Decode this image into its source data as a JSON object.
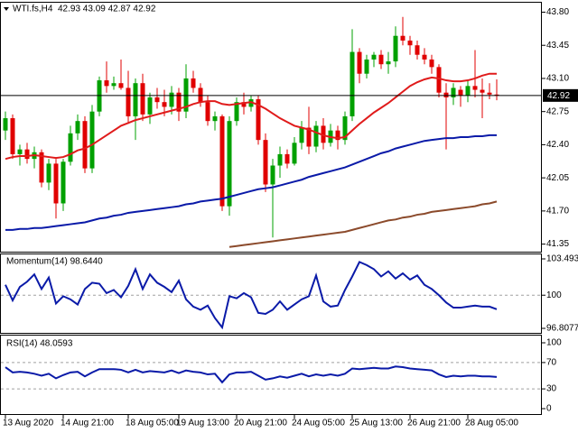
{
  "chart_data": [
    {
      "type": "candlestick",
      "title": "WTI.fs,H4  42.93 43.09 42.87 42.92",
      "up_color": "#00a000",
      "down_color": "#e00000",
      "open": [
        42.55,
        42.68,
        42.3,
        42.35,
        42.25,
        42.32,
        42.0,
        42.2,
        41.78,
        42.22,
        42.52,
        42.65,
        42.15,
        42.75,
        43.08,
        43.02,
        43.05,
        43.0,
        42.7,
        43.05,
        42.72,
        42.9,
        42.85,
        42.8,
        42.95,
        42.75,
        43.1,
        43.0,
        42.85,
        42.65,
        42.7,
        41.75,
        42.65,
        42.85,
        42.8,
        42.88,
        42.45,
        41.98,
        42.18,
        42.3,
        42.2,
        42.42,
        42.58,
        42.38,
        42.6,
        42.42,
        42.55,
        42.45,
        42.7,
        43.38,
        43.15,
        43.3,
        43.35,
        43.25,
        43.28,
        43.55,
        43.5,
        43.45,
        43.35,
        43.3,
        43.22,
        42.95,
        42.9,
        42.98,
        42.92,
        43.02,
        42.98,
        42.95,
        42.93
      ],
      "high": [
        42.75,
        42.72,
        42.4,
        42.42,
        42.38,
        42.35,
        42.25,
        42.25,
        42.25,
        42.6,
        42.72,
        42.7,
        42.82,
        43.12,
        43.28,
        43.12,
        43.3,
        43.18,
        43.1,
        43.15,
        42.95,
        43.0,
        42.98,
        43.02,
        43.0,
        43.25,
        43.18,
        43.05,
        42.92,
        42.75,
        42.72,
        42.7,
        42.9,
        42.95,
        42.92,
        42.92,
        42.52,
        42.25,
        42.38,
        42.35,
        42.48,
        42.65,
        42.8,
        42.65,
        42.68,
        42.62,
        42.6,
        42.75,
        43.62,
        43.42,
        43.35,
        43.38,
        43.4,
        43.38,
        43.65,
        43.75,
        43.55,
        43.5,
        43.42,
        43.35,
        43.25,
        43.05,
        43.05,
        43.02,
        43.08,
        43.4,
        43.1,
        43.05,
        43.09
      ],
      "low": [
        42.45,
        42.25,
        42.18,
        42.2,
        42.15,
        41.95,
        41.92,
        41.62,
        41.7,
        42.18,
        42.45,
        42.1,
        42.1,
        42.7,
        42.95,
        42.98,
        42.98,
        42.62,
        42.45,
        42.65,
        42.62,
        42.78,
        42.7,
        42.72,
        42.65,
        42.68,
        42.95,
        42.8,
        42.6,
        42.55,
        41.7,
        41.65,
        42.6,
        42.72,
        42.75,
        42.4,
        41.9,
        41.42,
        42.05,
        42.15,
        42.18,
        42.35,
        42.3,
        42.32,
        42.35,
        42.38,
        42.35,
        42.4,
        42.65,
        43.05,
        43.1,
        43.22,
        43.2,
        43.15,
        43.22,
        43.45,
        43.35,
        43.3,
        43.25,
        43.15,
        42.9,
        42.35,
        42.82,
        42.8,
        42.85,
        42.9,
        42.68,
        42.88,
        42.87
      ],
      "close": [
        42.68,
        42.3,
        42.35,
        42.25,
        42.32,
        42.0,
        42.2,
        41.78,
        42.22,
        42.52,
        42.65,
        42.15,
        42.75,
        43.08,
        43.02,
        43.05,
        43.0,
        42.7,
        43.05,
        42.72,
        42.9,
        42.85,
        42.8,
        42.95,
        42.75,
        43.1,
        43.0,
        42.85,
        42.65,
        42.7,
        41.75,
        42.65,
        42.85,
        42.8,
        42.88,
        42.45,
        41.98,
        42.18,
        42.3,
        42.2,
        42.42,
        42.58,
        42.38,
        42.6,
        42.42,
        42.55,
        42.45,
        42.7,
        43.38,
        43.15,
        43.3,
        43.35,
        43.25,
        43.28,
        43.55,
        43.5,
        43.45,
        43.35,
        43.3,
        43.22,
        42.95,
        42.9,
        43.0,
        42.92,
        43.02,
        42.98,
        42.95,
        42.93,
        42.92
      ],
      "series": [
        {
          "color": "#e01b1b",
          "values": [
            42.25,
            42.27,
            42.28,
            42.28,
            42.29,
            42.28,
            42.27,
            42.26,
            42.27,
            42.3,
            42.34,
            42.36,
            42.4,
            42.45,
            42.5,
            42.55,
            42.6,
            42.63,
            42.66,
            42.68,
            42.7,
            42.72,
            42.74,
            42.76,
            42.78,
            42.8,
            42.83,
            42.85,
            42.86,
            42.86,
            42.83,
            42.82,
            42.83,
            42.84,
            42.85,
            42.82,
            42.78,
            42.73,
            42.68,
            42.64,
            42.6,
            42.58,
            42.56,
            42.53,
            42.5,
            42.48,
            42.47,
            42.48,
            42.55,
            42.62,
            42.68,
            42.74,
            42.79,
            42.84,
            42.9,
            42.96,
            43.02,
            43.06,
            43.09,
            43.11,
            43.1,
            43.08,
            43.07,
            43.07,
            43.08,
            43.1,
            43.13,
            43.15,
            43.15
          ]
        },
        {
          "color": "#0a1aa8",
          "values": [
            41.5,
            41.5,
            41.51,
            41.51,
            41.52,
            41.52,
            41.53,
            41.54,
            41.55,
            41.56,
            41.57,
            41.58,
            41.6,
            41.62,
            41.63,
            41.65,
            41.66,
            41.68,
            41.69,
            41.7,
            41.71,
            41.72,
            41.73,
            41.74,
            41.75,
            41.77,
            41.78,
            41.8,
            41.81,
            41.82,
            41.83,
            41.85,
            41.87,
            41.89,
            41.91,
            41.93,
            41.94,
            41.95,
            41.97,
            41.99,
            42.01,
            42.03,
            42.06,
            42.08,
            42.1,
            42.12,
            42.14,
            42.16,
            42.19,
            42.22,
            42.25,
            42.28,
            42.31,
            42.33,
            42.36,
            42.38,
            42.4,
            42.42,
            42.44,
            42.45,
            42.46,
            42.47,
            42.47,
            42.48,
            42.48,
            42.49,
            42.49,
            42.5,
            42.5
          ]
        },
        {
          "color": "#8b4a2b",
          "values": [
            null,
            null,
            null,
            null,
            null,
            null,
            null,
            null,
            null,
            null,
            null,
            null,
            null,
            null,
            null,
            null,
            null,
            null,
            null,
            null,
            null,
            null,
            null,
            null,
            null,
            null,
            null,
            null,
            null,
            null,
            null,
            41.32,
            41.33,
            41.34,
            41.35,
            41.36,
            41.37,
            41.38,
            41.39,
            41.4,
            41.41,
            41.42,
            41.43,
            41.44,
            41.45,
            41.46,
            41.47,
            41.48,
            41.5,
            41.52,
            41.54,
            41.56,
            41.58,
            41.6,
            41.61,
            41.63,
            41.64,
            41.66,
            41.67,
            41.69,
            41.7,
            41.71,
            41.72,
            41.73,
            41.74,
            41.75,
            41.77,
            41.78,
            41.8
          ]
        }
      ],
      "last_price": 42.92,
      "ylim": [
        41.27,
        43.9
      ],
      "yticks": [
        {
          "value": 43.8,
          "label": "43.80"
        },
        43.45,
        {
          "value": 43.1,
          "label": "43.10"
        },
        42.75,
        {
          "value": 42.4,
          "label": "42.40"
        },
        42.05,
        {
          "value": 41.7,
          "label": "41.70"
        },
        41.35
      ]
    },
    {
      "type": "line",
      "title": "Momentum(14) 98.6440",
      "series": [
        {
          "color": "#0a1aa8",
          "values": [
            101.0,
            99.5,
            100.8,
            101.3,
            102.0,
            100.6,
            101.7,
            99.2,
            99.9,
            99.6,
            99.1,
            100.6,
            101.2,
            101.1,
            100.2,
            100.5,
            99.8,
            100.9,
            102.5,
            100.6,
            102.0,
            101.2,
            100.8,
            100.3,
            101.4,
            99.6,
            98.9,
            98.6,
            99.0,
            97.8,
            96.9,
            99.9,
            99.7,
            100.2,
            99.8,
            98.3,
            98.2,
            98.6,
            99.4,
            98.6,
            99.1,
            99.6,
            99.9,
            101.9,
            99.4,
            98.9,
            99.0,
            100.5,
            101.8,
            103.2,
            102.9,
            102.5,
            101.8,
            102.3,
            101.6,
            102.1,
            101.5,
            101.9,
            101.0,
            100.6,
            100.0,
            99.3,
            98.8,
            98.8,
            98.9,
            99.0,
            98.9,
            98.9,
            98.644
          ]
        }
      ],
      "levels": [
        100
      ],
      "ylim": [
        96.8077,
        103.4936
      ],
      "yticks": [
        103.4936,
        100,
        96.8077
      ]
    },
    {
      "type": "line",
      "title": "RSI(14) 48.0593",
      "series": [
        {
          "color": "#0a1aa8",
          "values": [
            63,
            55,
            56,
            55,
            53,
            50,
            53,
            46,
            51,
            55,
            56,
            49,
            55,
            60,
            60,
            60,
            59,
            55,
            59,
            55,
            57,
            56,
            55,
            58,
            54,
            58,
            56,
            55,
            52,
            53,
            40,
            52,
            55,
            55,
            56,
            50,
            44,
            46,
            49,
            47,
            50,
            53,
            49,
            52,
            50,
            52,
            50,
            53,
            61,
            60,
            61,
            62,
            61,
            61,
            64,
            63,
            61,
            60,
            59,
            58,
            52,
            48,
            50,
            49,
            50,
            50,
            49,
            49,
            48.0593
          ]
        }
      ],
      "levels": [
        70,
        30
      ],
      "ylim": [
        0,
        100
      ],
      "yticks": [
        100,
        70,
        30,
        0
      ],
      "categories": [
        "13 Aug 2020",
        null,
        null,
        null,
        null,
        null,
        null,
        null,
        "14 Aug 21:00",
        null,
        null,
        null,
        null,
        null,
        null,
        null,
        null,
        "18 Aug 05:00",
        null,
        null,
        null,
        null,
        null,
        null,
        "19 Aug 13:00",
        null,
        null,
        null,
        null,
        null,
        null,
        null,
        "20 Aug 21:00",
        null,
        null,
        null,
        null,
        null,
        null,
        null,
        "24 Aug 05:00",
        null,
        null,
        null,
        null,
        null,
        null,
        null,
        "25 Aug 13:00",
        null,
        null,
        null,
        null,
        null,
        null,
        null,
        "26 Aug 21:00",
        null,
        null,
        null,
        null,
        null,
        null,
        null,
        "28 Aug 05:00",
        null,
        null,
        null,
        null
      ]
    }
  ]
}
